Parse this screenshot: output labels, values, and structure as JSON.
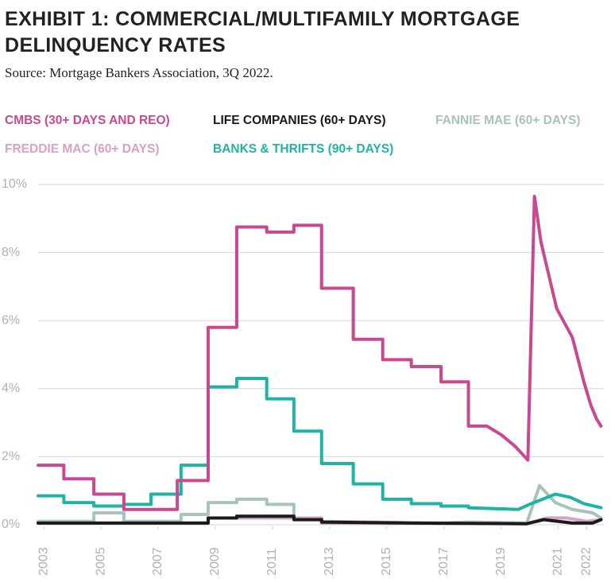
{
  "chart_data": {
    "type": "line",
    "title": "EXHIBIT 1: COMMERCIAL/MULTIFAMILY MORTGAGE DELINQUENCY RATES",
    "source": "Source: Mortgage Bankers Association, 3Q 2022.",
    "xlim": [
      2002.8,
      2022.6
    ],
    "xticks": [
      2003,
      2005,
      2007,
      2009,
      2011,
      2013,
      2015,
      2017,
      2019,
      2021,
      2022
    ],
    "ylim": [
      0,
      10
    ],
    "yticks": [
      {
        "value": 0,
        "label": "0%"
      },
      {
        "value": 2,
        "label": "2%"
      },
      {
        "value": 4,
        "label": "4%"
      },
      {
        "value": 6,
        "label": "6%"
      },
      {
        "value": 8,
        "label": "8%"
      },
      {
        "value": 10,
        "label": "10%"
      }
    ],
    "grid": true,
    "series": [
      {
        "name": "CMBS (30+ DAYS AND REO)",
        "color": "#c9488f",
        "x": [
          2002.8,
          2003.7,
          2003.7,
          2004.75,
          2004.75,
          2005.8,
          2005.8,
          2007.67,
          2007.67,
          2008.75,
          2008.75,
          2009.75,
          2009.75,
          2010.8,
          2010.8,
          2011.75,
          2011.75,
          2012.72,
          2012.72,
          2013.83,
          2013.83,
          2014.86,
          2014.86,
          2015.86,
          2015.86,
          2016.9,
          2016.9,
          2017.86,
          2017.86,
          2018.5,
          2019.0,
          2019.5,
          2019.94,
          2020.17,
          2020.4,
          2020.95,
          2021.5,
          2021.9,
          2022.15,
          2022.35,
          2022.5
        ],
        "values": [
          1.75,
          1.75,
          1.35,
          1.35,
          0.9,
          0.9,
          0.45,
          0.45,
          1.3,
          1.3,
          5.8,
          5.8,
          8.75,
          8.75,
          8.6,
          8.6,
          8.8,
          8.8,
          6.95,
          6.95,
          5.45,
          5.45,
          4.85,
          4.85,
          4.65,
          4.65,
          4.2,
          4.2,
          2.9,
          2.9,
          2.65,
          2.3,
          1.9,
          9.65,
          8.3,
          6.35,
          5.5,
          4.2,
          3.5,
          3.1,
          2.9
        ]
      },
      {
        "name": "LIFE COMPANIES (60+ DAYS)",
        "color": "#1a1a1a",
        "x": [
          2002.8,
          2008.75,
          2008.75,
          2009.75,
          2009.75,
          2011.75,
          2011.75,
          2012.72,
          2012.72,
          2015.86,
          2019.9,
          2020.5,
          2021.5,
          2022.2,
          2022.5
        ],
        "values": [
          0.05,
          0.05,
          0.2,
          0.2,
          0.25,
          0.25,
          0.15,
          0.15,
          0.08,
          0.05,
          0.03,
          0.15,
          0.05,
          0.05,
          0.15
        ]
      },
      {
        "name": "FANNIE MAE (60+ DAYS)",
        "color": "#a8c2bd",
        "x": [
          2002.8,
          2004.75,
          2004.75,
          2005.8,
          2005.8,
          2007.8,
          2007.8,
          2008.75,
          2008.75,
          2009.75,
          2009.75,
          2010.8,
          2010.8,
          2011.75,
          2011.75,
          2012.72,
          2012.72,
          2016.9,
          2017.86,
          2019.9,
          2020.35,
          2020.9,
          2021.5,
          2022.2,
          2022.5
        ],
        "values": [
          0.1,
          0.1,
          0.35,
          0.35,
          0.1,
          0.1,
          0.3,
          0.3,
          0.65,
          0.65,
          0.75,
          0.75,
          0.6,
          0.6,
          0.2,
          0.2,
          0.1,
          0.05,
          0.08,
          0.05,
          1.15,
          0.65,
          0.45,
          0.35,
          0.2
        ]
      },
      {
        "name": "FREDDIE MAC (60+ DAYS)",
        "color": "#d9a0c6",
        "x": [
          2002.8,
          2008.75,
          2008.75,
          2012.72,
          2012.72,
          2019.9,
          2020.6,
          2021.3,
          2022.0,
          2022.5
        ],
        "values": [
          0.05,
          0.05,
          0.2,
          0.2,
          0.05,
          0.03,
          0.2,
          0.2,
          0.1,
          0.15
        ]
      },
      {
        "name": "BANKS & THRIFTS (90+ DAYS)",
        "color": "#1fb3a6",
        "x": [
          2002.8,
          2003.7,
          2003.7,
          2004.75,
          2004.75,
          2005.8,
          2005.8,
          2006.75,
          2006.75,
          2007.8,
          2007.8,
          2008.75,
          2008.75,
          2009.75,
          2009.75,
          2010.8,
          2010.8,
          2011.75,
          2011.75,
          2012.72,
          2012.72,
          2013.83,
          2013.83,
          2014.86,
          2014.86,
          2015.86,
          2015.86,
          2016.9,
          2016.9,
          2017.86,
          2017.86,
          2019.6,
          2020.0,
          2020.9,
          2021.45,
          2021.9,
          2022.5
        ],
        "values": [
          0.85,
          0.85,
          0.65,
          0.65,
          0.55,
          0.55,
          0.6,
          0.6,
          0.9,
          0.9,
          1.75,
          1.75,
          4.05,
          4.05,
          4.3,
          4.3,
          3.7,
          3.7,
          2.75,
          2.75,
          1.8,
          1.8,
          1.2,
          1.2,
          0.75,
          0.75,
          0.62,
          0.62,
          0.55,
          0.55,
          0.5,
          0.45,
          0.6,
          0.9,
          0.8,
          0.62,
          0.5
        ]
      }
    ]
  }
}
